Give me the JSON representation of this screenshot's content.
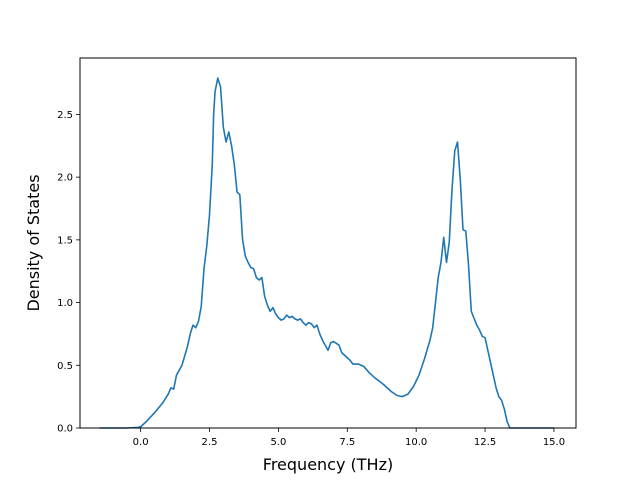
{
  "chart_data": {
    "type": "line",
    "xlabel": "Frequency (THz)",
    "ylabel": "Density of States",
    "xlim": [
      -2.2,
      15.8
    ],
    "ylim": [
      0,
      2.95
    ],
    "x_ticks": [
      "0.0",
      "2.5",
      "5.0",
      "7.5",
      "10.0",
      "12.5",
      "15.0"
    ],
    "x_tick_values": [
      0,
      2.5,
      5,
      7.5,
      10,
      12.5,
      15
    ],
    "y_ticks": [
      "0.0",
      "0.5",
      "1.0",
      "1.5",
      "2.0",
      "2.5"
    ],
    "y_tick_values": [
      0,
      0.5,
      1,
      1.5,
      2,
      2.5
    ],
    "grid": false,
    "series": [
      {
        "color": "#1f77b4",
        "x": [
          -1.5,
          -0.5,
          -0.1,
          0.0,
          0.2,
          0.5,
          0.8,
          1.0,
          1.1,
          1.2,
          1.3,
          1.5,
          1.7,
          1.8,
          1.9,
          2.0,
          2.1,
          2.2,
          2.3,
          2.4,
          2.5,
          2.6,
          2.65,
          2.7,
          2.8,
          2.9,
          3.0,
          3.1,
          3.2,
          3.3,
          3.4,
          3.5,
          3.6,
          3.7,
          3.8,
          3.9,
          4.0,
          4.1,
          4.2,
          4.3,
          4.4,
          4.5,
          4.6,
          4.7,
          4.8,
          4.9,
          5.0,
          5.1,
          5.2,
          5.3,
          5.4,
          5.5,
          5.6,
          5.7,
          5.8,
          5.9,
          6.0,
          6.1,
          6.2,
          6.3,
          6.4,
          6.5,
          6.6,
          6.7,
          6.8,
          6.9,
          7.0,
          7.2,
          7.3,
          7.4,
          7.6,
          7.7,
          7.9,
          8.1,
          8.3,
          8.5,
          8.8,
          9.1,
          9.3,
          9.5,
          9.7,
          9.9,
          10.1,
          10.3,
          10.5,
          10.6,
          10.7,
          10.8,
          10.9,
          11.0,
          11.1,
          11.2,
          11.3,
          11.4,
          11.5,
          11.6,
          11.7,
          11.8,
          11.9,
          12.0,
          12.2,
          12.3,
          12.4,
          12.5,
          12.6,
          12.7,
          12.8,
          12.9,
          13.0,
          13.1,
          13.2,
          13.3,
          13.4,
          13.5,
          13.6,
          14.0,
          15.0
        ],
        "y": [
          0,
          0,
          0.005,
          0.01,
          0.05,
          0.12,
          0.2,
          0.27,
          0.32,
          0.31,
          0.42,
          0.5,
          0.65,
          0.75,
          0.82,
          0.8,
          0.85,
          0.97,
          1.27,
          1.45,
          1.7,
          2.1,
          2.5,
          2.68,
          2.79,
          2.72,
          2.4,
          2.28,
          2.36,
          2.25,
          2.1,
          1.88,
          1.86,
          1.5,
          1.37,
          1.32,
          1.28,
          1.27,
          1.2,
          1.18,
          1.2,
          1.05,
          0.98,
          0.93,
          0.96,
          0.91,
          0.88,
          0.86,
          0.87,
          0.9,
          0.88,
          0.89,
          0.87,
          0.86,
          0.87,
          0.84,
          0.82,
          0.84,
          0.83,
          0.8,
          0.82,
          0.75,
          0.7,
          0.66,
          0.62,
          0.68,
          0.69,
          0.66,
          0.6,
          0.58,
          0.54,
          0.51,
          0.51,
          0.49,
          0.44,
          0.4,
          0.35,
          0.29,
          0.26,
          0.25,
          0.27,
          0.33,
          0.42,
          0.55,
          0.7,
          0.8,
          1.0,
          1.2,
          1.32,
          1.52,
          1.32,
          1.48,
          1.9,
          2.21,
          2.28,
          1.98,
          1.58,
          1.57,
          1.3,
          0.93,
          0.82,
          0.78,
          0.73,
          0.72,
          0.62,
          0.52,
          0.42,
          0.32,
          0.25,
          0.22,
          0.15,
          0.05,
          0.0,
          0.0,
          0.0,
          0.0,
          0.0
        ]
      }
    ]
  }
}
